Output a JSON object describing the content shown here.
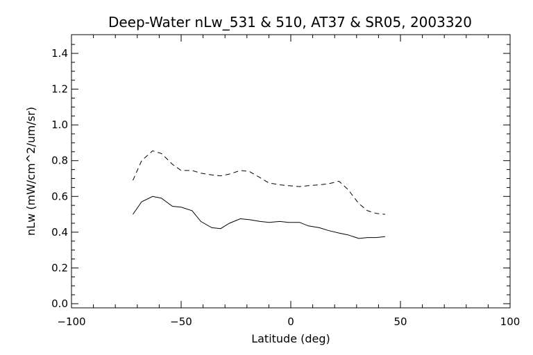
{
  "chart_data": {
    "type": "line",
    "title": "Deep-Water nLw_531 & 510, AT37 & SR05, 2003320",
    "xlabel": "Latitude (deg)",
    "ylabel": "nLw (mW/cm^2/um/sr)",
    "xlim": [
      -100,
      100
    ],
    "ylim": [
      0.0,
      1.5
    ],
    "xticks": [
      -100,
      -50,
      0,
      50,
      100
    ],
    "xtick_labels": [
      "−100",
      "−50",
      "0",
      "50",
      "100"
    ],
    "yticks": [
      0.0,
      0.2,
      0.4,
      0.6,
      0.8,
      1.0,
      1.2,
      1.4
    ],
    "ytick_labels": [
      "0.0",
      "0.2",
      "0.4",
      "0.6",
      "0.8",
      "1.0",
      "1.2",
      "1.4"
    ],
    "grid": false,
    "legend": "none",
    "series": [
      {
        "style": "solid",
        "x": [
          -72,
          -68,
          -63,
          -59,
          -54,
          -50,
          -45,
          -41,
          -36,
          -32,
          -28,
          -23,
          -19,
          -14,
          -10,
          -5,
          -1,
          4,
          8,
          13,
          17,
          22,
          26,
          31,
          35,
          39,
          43
        ],
        "y": [
          0.5,
          0.57,
          0.6,
          0.59,
          0.545,
          0.54,
          0.52,
          0.46,
          0.425,
          0.42,
          0.45,
          0.475,
          0.47,
          0.46,
          0.455,
          0.46,
          0.455,
          0.455,
          0.435,
          0.425,
          0.41,
          0.395,
          0.385,
          0.365,
          0.37,
          0.37,
          0.375
        ]
      },
      {
        "style": "dashed",
        "x": [
          -72,
          -68,
          -63,
          -59,
          -54,
          -50,
          -45,
          -41,
          -36,
          -32,
          -28,
          -23,
          -19,
          -14,
          -10,
          -5,
          -1,
          4,
          8,
          13,
          17,
          22,
          26,
          31,
          35,
          39,
          43
        ],
        "y": [
          0.69,
          0.8,
          0.855,
          0.84,
          0.78,
          0.745,
          0.745,
          0.73,
          0.72,
          0.715,
          0.725,
          0.745,
          0.74,
          0.705,
          0.675,
          0.665,
          0.66,
          0.655,
          0.66,
          0.665,
          0.67,
          0.685,
          0.64,
          0.56,
          0.52,
          0.505,
          0.5
        ]
      }
    ]
  }
}
